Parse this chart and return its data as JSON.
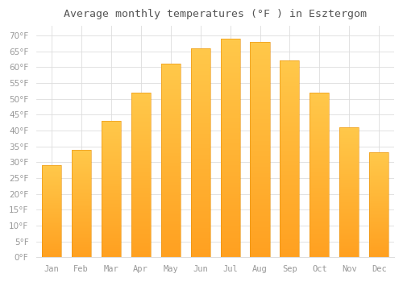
{
  "title": "Average monthly temperatures (°F ) in Esztergom",
  "months": [
    "Jan",
    "Feb",
    "Mar",
    "Apr",
    "May",
    "Jun",
    "Jul",
    "Aug",
    "Sep",
    "Oct",
    "Nov",
    "Dec"
  ],
  "values": [
    29,
    34,
    43,
    52,
    61,
    66,
    69,
    68,
    62,
    52,
    41,
    33
  ],
  "bar_color_top": "#FFC84A",
  "bar_color_bottom": "#FFA020",
  "bar_edge_color": "#E8900A",
  "background_color": "#FFFFFF",
  "grid_color": "#DDDDDD",
  "text_color": "#999999",
  "title_color": "#555555",
  "ylim": [
    0,
    73
  ],
  "yticks": [
    0,
    5,
    10,
    15,
    20,
    25,
    30,
    35,
    40,
    45,
    50,
    55,
    60,
    65,
    70
  ],
  "title_fontsize": 9.5,
  "tick_fontsize": 7.5,
  "bar_width": 0.65
}
